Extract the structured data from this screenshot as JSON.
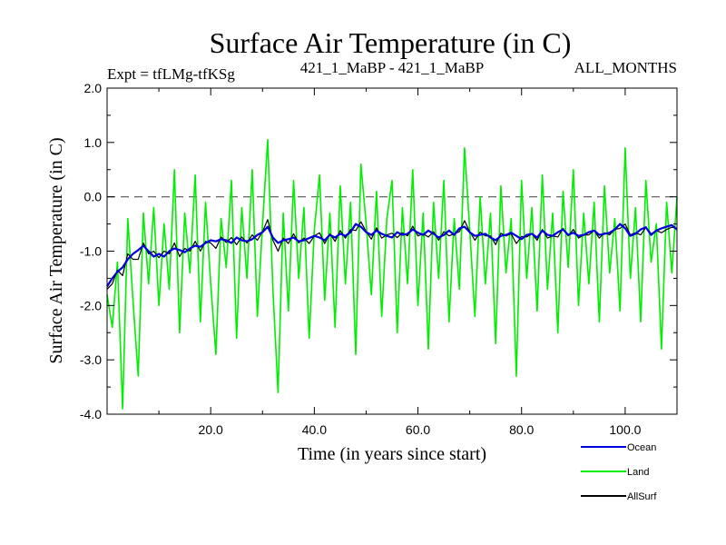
{
  "chart_data": {
    "type": "line",
    "title": "Surface Air Temperature (in C)",
    "subtitle_left": "Expt = tfLMg-tfKSg",
    "subtitle_center": "421_1_MaBP - 421_1_MaBP",
    "subtitle_right": "ALL_MONTHS",
    "xlabel": "Time (in years since start)",
    "ylabel": "Surface Air Temperature (in C)",
    "xlim": [
      0,
      110
    ],
    "ylim": [
      -4.0,
      2.0
    ],
    "xticks": [
      20,
      40,
      60,
      80,
      100
    ],
    "xtick_labels": [
      "20.0",
      "40.0",
      "60.0",
      "80.0",
      "100.0"
    ],
    "yticks": [
      -4,
      -3,
      -2,
      -1,
      0,
      1,
      2
    ],
    "ytick_labels": [
      "-4.0",
      "-3.0",
      "-2.0",
      "-1.0",
      "0.0",
      "1.0",
      "2.0"
    ],
    "reference_line": 0.0,
    "series": [
      {
        "name": "Land",
        "color": "#00ee00",
        "x": [
          0,
          1,
          2,
          3,
          4,
          5,
          6,
          7,
          8,
          9,
          10,
          11,
          12,
          13,
          14,
          15,
          16,
          17,
          18,
          19,
          20,
          21,
          22,
          23,
          24,
          25,
          26,
          27,
          28,
          29,
          30,
          31,
          32,
          33,
          34,
          35,
          36,
          37,
          38,
          39,
          40,
          41,
          42,
          43,
          44,
          45,
          46,
          47,
          48,
          49,
          50,
          51,
          52,
          53,
          54,
          55,
          56,
          57,
          58,
          59,
          60,
          61,
          62,
          63,
          64,
          65,
          66,
          67,
          68,
          69,
          70,
          71,
          72,
          73,
          74,
          75,
          76,
          77,
          78,
          79,
          80,
          81,
          82,
          83,
          84,
          85,
          86,
          87,
          88,
          89,
          90,
          91,
          92,
          93,
          94,
          95,
          96,
          97,
          98,
          99,
          100,
          101,
          102,
          103,
          104,
          105,
          106,
          107,
          108,
          109,
          110
        ],
        "values": [
          -1.8,
          -2.4,
          -1.2,
          -3.9,
          -0.4,
          -1.9,
          -3.3,
          -0.3,
          -1.6,
          -0.2,
          -2.0,
          -0.5,
          -1.7,
          0.5,
          -2.5,
          -0.3,
          -1.4,
          0.4,
          -2.3,
          -0.1,
          -1.6,
          -2.9,
          -0.4,
          -1.3,
          0.3,
          -2.6,
          -0.2,
          -1.5,
          0.5,
          -2.2,
          -0.5,
          1.05,
          -1.7,
          -3.6,
          -0.3,
          -2.1,
          0.3,
          -1.5,
          -0.2,
          -2.6,
          -0.6,
          0.4,
          -1.9,
          -0.3,
          -2.4,
          0.2,
          -1.6,
          -0.1,
          -2.9,
          0.6,
          -0.5,
          -1.8,
          0.1,
          -2.2,
          -0.4,
          0.3,
          -2.5,
          -0.2,
          -1.6,
          0.5,
          -2.0,
          -0.3,
          -2.8,
          -0.1,
          -1.5,
          0.3,
          -2.3,
          -0.4,
          -1.7,
          0.9,
          -0.6,
          -2.2,
          0.0,
          -1.6,
          -0.3,
          -2.7,
          0.2,
          -1.4,
          -0.4,
          -3.3,
          0.3,
          -1.5,
          -0.2,
          -2.1,
          0.4,
          -1.7,
          -0.3,
          -2.5,
          0.1,
          -1.3,
          0.5,
          -2.0,
          -0.3,
          -1.6,
          -0.1,
          -2.3,
          0.2,
          -1.4,
          -0.4,
          -2.1,
          0.9,
          -1.5,
          -0.2,
          -2.3,
          0.3,
          -1.2,
          -0.5,
          -2.8,
          -0.1,
          -1.4,
          0.0
        ]
      },
      {
        "name": "Ocean",
        "color": "#0000dd",
        "x": [
          0,
          1,
          2,
          3,
          4,
          5,
          6,
          7,
          8,
          9,
          10,
          11,
          12,
          13,
          14,
          15,
          16,
          17,
          18,
          19,
          20,
          21,
          22,
          23,
          24,
          25,
          26,
          27,
          28,
          29,
          30,
          31,
          32,
          33,
          34,
          35,
          36,
          37,
          38,
          39,
          40,
          41,
          42,
          43,
          44,
          45,
          46,
          47,
          48,
          49,
          50,
          51,
          52,
          53,
          54,
          55,
          56,
          57,
          58,
          59,
          60,
          61,
          62,
          63,
          64,
          65,
          66,
          67,
          68,
          69,
          70,
          71,
          72,
          73,
          74,
          75,
          76,
          77,
          78,
          79,
          80,
          81,
          82,
          83,
          84,
          85,
          86,
          87,
          88,
          89,
          90,
          91,
          92,
          93,
          94,
          95,
          96,
          97,
          98,
          99,
          100,
          101,
          102,
          103,
          104,
          105,
          106,
          107,
          108,
          109,
          110
        ],
        "values": [
          -1.65,
          -1.5,
          -1.38,
          -1.3,
          -1.15,
          -1.05,
          -0.98,
          -0.9,
          -1.0,
          -1.1,
          -1.05,
          -1.1,
          -1.0,
          -0.95,
          -0.98,
          -1.02,
          -0.95,
          -0.9,
          -0.92,
          -0.85,
          -0.8,
          -0.82,
          -0.78,
          -0.8,
          -0.85,
          -0.75,
          -0.8,
          -0.82,
          -0.78,
          -0.7,
          -0.65,
          -0.55,
          -0.75,
          -0.85,
          -0.8,
          -0.78,
          -0.75,
          -0.82,
          -0.8,
          -0.76,
          -0.72,
          -0.75,
          -0.8,
          -0.7,
          -0.75,
          -0.68,
          -0.72,
          -0.65,
          -0.5,
          -0.55,
          -0.65,
          -0.7,
          -0.62,
          -0.68,
          -0.72,
          -0.75,
          -0.65,
          -0.7,
          -0.68,
          -0.6,
          -0.66,
          -0.7,
          -0.62,
          -0.68,
          -0.75,
          -0.7,
          -0.62,
          -0.7,
          -0.58,
          -0.55,
          -0.65,
          -0.72,
          -0.7,
          -0.68,
          -0.75,
          -0.8,
          -0.72,
          -0.7,
          -0.66,
          -0.72,
          -0.78,
          -0.7,
          -0.68,
          -0.75,
          -0.62,
          -0.7,
          -0.72,
          -0.65,
          -0.6,
          -0.7,
          -0.66,
          -0.72,
          -0.7,
          -0.65,
          -0.62,
          -0.7,
          -0.68,
          -0.66,
          -0.6,
          -0.5,
          -0.58,
          -0.72,
          -0.68,
          -0.6,
          -0.56,
          -0.7,
          -0.62,
          -0.58,
          -0.55,
          -0.52,
          -0.6
        ]
      },
      {
        "name": "AllSurf",
        "color": "#000000",
        "x": [
          0,
          1,
          2,
          3,
          4,
          5,
          6,
          7,
          8,
          9,
          10,
          11,
          12,
          13,
          14,
          15,
          16,
          17,
          18,
          19,
          20,
          21,
          22,
          23,
          24,
          25,
          26,
          27,
          28,
          29,
          30,
          31,
          32,
          33,
          34,
          35,
          36,
          37,
          38,
          39,
          40,
          41,
          42,
          43,
          44,
          45,
          46,
          47,
          48,
          49,
          50,
          51,
          52,
          53,
          54,
          55,
          56,
          57,
          58,
          59,
          60,
          61,
          62,
          63,
          64,
          65,
          66,
          67,
          68,
          69,
          70,
          71,
          72,
          73,
          74,
          75,
          76,
          77,
          78,
          79,
          80,
          81,
          82,
          83,
          84,
          85,
          86,
          87,
          88,
          89,
          90,
          91,
          92,
          93,
          94,
          95,
          96,
          97,
          98,
          99,
          100,
          101,
          102,
          103,
          104,
          105,
          106,
          107,
          108,
          109,
          110
        ],
        "values": [
          -1.7,
          -1.6,
          -1.35,
          -1.45,
          -1.05,
          -1.15,
          -1.15,
          -0.85,
          -1.05,
          -1.0,
          -1.12,
          -1.0,
          -1.05,
          -0.85,
          -1.1,
          -0.95,
          -1.0,
          -0.82,
          -1.0,
          -0.82,
          -0.85,
          -0.95,
          -0.74,
          -0.84,
          -0.75,
          -0.88,
          -0.74,
          -0.85,
          -0.7,
          -0.8,
          -0.64,
          -0.42,
          -0.8,
          -1.0,
          -0.76,
          -0.86,
          -0.68,
          -0.85,
          -0.76,
          -0.86,
          -0.72,
          -0.66,
          -0.86,
          -0.68,
          -0.82,
          -0.62,
          -0.76,
          -0.6,
          -0.62,
          -0.46,
          -0.64,
          -0.78,
          -0.57,
          -0.76,
          -0.7,
          -0.67,
          -0.75,
          -0.66,
          -0.72,
          -0.54,
          -0.72,
          -0.68,
          -0.74,
          -0.64,
          -0.8,
          -0.64,
          -0.72,
          -0.68,
          -0.64,
          -0.44,
          -0.64,
          -0.8,
          -0.65,
          -0.72,
          -0.72,
          -0.88,
          -0.67,
          -0.72,
          -0.68,
          -0.86,
          -0.73,
          -0.74,
          -0.68,
          -0.8,
          -0.6,
          -0.76,
          -0.72,
          -0.74,
          -0.58,
          -0.72,
          -0.6,
          -0.76,
          -0.7,
          -0.7,
          -0.62,
          -0.76,
          -0.66,
          -0.7,
          -0.6,
          -0.58,
          -0.5,
          -0.7,
          -0.66,
          -0.7,
          -0.56,
          -0.68,
          -0.62,
          -0.66,
          -0.6,
          -0.56,
          -0.58
        ]
      }
    ],
    "legend": {
      "placement": "bottom-right",
      "entries": [
        {
          "label": "Ocean",
          "color": "#0000dd"
        },
        {
          "label": "Land",
          "color": "#00ee00"
        },
        {
          "label": "AllSurf",
          "color": "#000000"
        }
      ]
    }
  }
}
